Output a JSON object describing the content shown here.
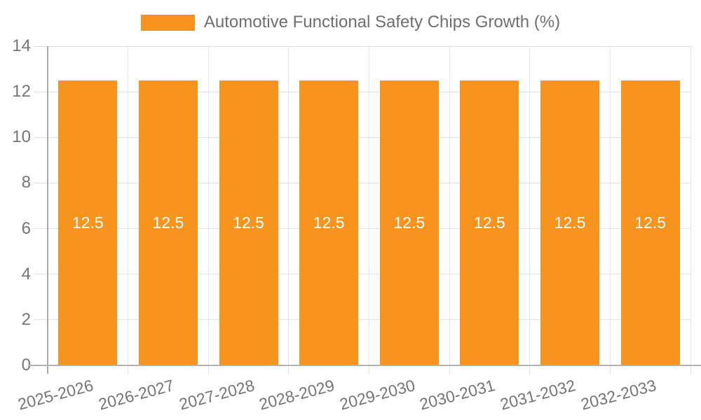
{
  "chart_data": {
    "type": "bar",
    "title": "Automotive Functional Safety Chips Growth (%)",
    "categories": [
      "2025-2026",
      "2026-2027",
      "2027-2028",
      "2028-2029",
      "2029-2030",
      "2030-2031",
      "2031-2032",
      "2032-2033"
    ],
    "series": [
      {
        "name": "Automotive Functional Safety Chips Growth (%)",
        "values": [
          12.5,
          12.5,
          12.5,
          12.5,
          12.5,
          12.5,
          12.5,
          12.5
        ],
        "color": "#F7941E"
      }
    ],
    "bar_value_labels": [
      "12.5",
      "12.5",
      "12.5",
      "12.5",
      "12.5",
      "12.5",
      "12.5",
      "12.5"
    ],
    "xlabel": "",
    "ylabel": "",
    "ylim": [
      0,
      14
    ],
    "yticks": [
      0,
      2,
      4,
      6,
      8,
      10,
      12,
      14
    ],
    "grid": true,
    "legend_position": "top-center",
    "colors": {
      "bar": "#F7941E",
      "grid": "#E3E3E3",
      "axis": "#B3B3B3",
      "tick_text": "#757575",
      "value_label_text": "#FFFFFF",
      "background": "#FFFFFF"
    }
  }
}
